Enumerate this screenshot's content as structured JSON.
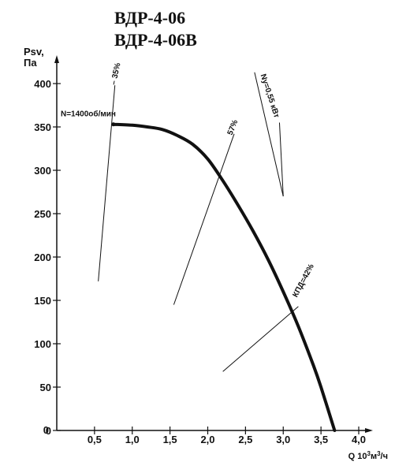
{
  "chart_data": {
    "type": "line",
    "title_lines": [
      "ВДР-4-06",
      "ВДР-4-06В"
    ],
    "ylabel_lines": [
      "Psv,",
      "Па"
    ],
    "xlabel_parts": [
      "Q 10",
      "3",
      "м",
      "3",
      "/ч"
    ],
    "xlim": [
      0,
      4.0
    ],
    "ylim": [
      0,
      400
    ],
    "x_ticks": [
      {
        "value": 0.5,
        "label": "0,5"
      },
      {
        "value": 1.0,
        "label": "1,0"
      },
      {
        "value": 1.5,
        "label": "1,5"
      },
      {
        "value": 2.0,
        "label": "2,0"
      },
      {
        "value": 2.5,
        "label": "2,5"
      },
      {
        "value": 3.0,
        "label": "3,0"
      },
      {
        "value": 3.5,
        "label": "3,5"
      },
      {
        "value": 4.0,
        "label": "4,0"
      }
    ],
    "y_ticks": [
      {
        "value": 0,
        "label": "0"
      },
      {
        "value": 50,
        "label": "50"
      },
      {
        "value": 100,
        "label": "100"
      },
      {
        "value": 150,
        "label": "150"
      },
      {
        "value": 200,
        "label": "200"
      },
      {
        "value": 250,
        "label": "250"
      },
      {
        "value": 300,
        "label": "300"
      },
      {
        "value": 350,
        "label": "350"
      },
      {
        "value": 400,
        "label": "400"
      }
    ],
    "grid": false,
    "series": [
      {
        "points": [
          [
            0.75,
            353
          ],
          [
            1.0,
            352
          ],
          [
            1.2,
            350
          ],
          [
            1.4,
            347
          ],
          [
            1.6,
            340
          ],
          [
            1.8,
            330
          ],
          [
            2.0,
            313
          ],
          [
            2.2,
            288
          ],
          [
            2.4,
            260
          ],
          [
            2.6,
            230
          ],
          [
            2.8,
            197
          ],
          [
            3.0,
            160
          ],
          [
            3.2,
            120
          ],
          [
            3.4,
            75
          ],
          [
            3.5,
            50
          ],
          [
            3.68,
            0
          ]
        ]
      }
    ],
    "speed_label": "N=1400об/мин",
    "speed_point": [
      0.75,
      353
    ],
    "efficiency_lines": [
      {
        "label": "– 35%",
        "from": [
          0.55,
          172
        ],
        "to": [
          0.77,
          398
        ]
      },
      {
        "label": "57%",
        "from": [
          1.55,
          145
        ],
        "to": [
          2.35,
          342
        ]
      },
      {
        "label": "КПД=42%",
        "from": [
          2.2,
          68
        ],
        "to": [
          3.2,
          143
        ]
      },
      {
        "label": "Nу=0,55 кВт",
        "from": [
          2.95,
          355
        ],
        "to": [
          3.0,
          270
        ]
      }
    ],
    "power_line": {
      "from": [
        2.62,
        413
      ],
      "to": [
        3.0,
        270
      ]
    }
  }
}
